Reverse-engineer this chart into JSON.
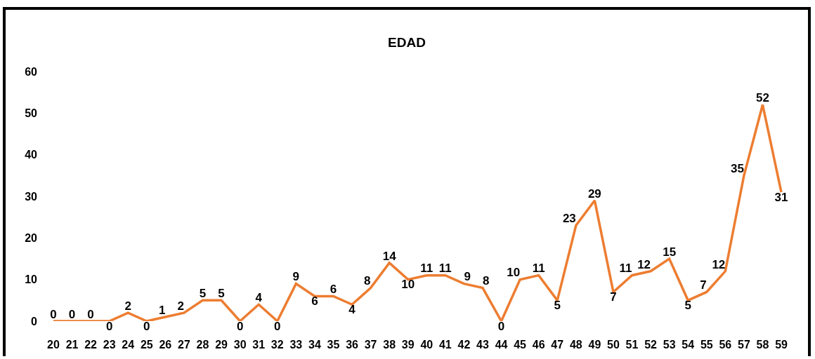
{
  "chart_data": {
    "type": "line",
    "title": "EDAD",
    "categories": [
      "20",
      "21",
      "22",
      "23",
      "24",
      "25",
      "26",
      "27",
      "28",
      "29",
      "30",
      "31",
      "32",
      "33",
      "34",
      "35",
      "36",
      "37",
      "38",
      "39",
      "40",
      "41",
      "42",
      "43",
      "44",
      "45",
      "46",
      "47",
      "48",
      "49",
      "50",
      "51",
      "52",
      "53",
      "54",
      "55",
      "56",
      "57",
      "58",
      "59"
    ],
    "series": [
      {
        "color": "#ed7d31",
        "values": [
          0,
          0,
          0,
          0,
          2,
          0,
          1,
          2,
          5,
          5,
          0,
          4,
          0,
          9,
          6,
          6,
          4,
          8,
          14,
          10,
          11,
          11,
          9,
          8,
          0,
          10,
          11,
          5,
          23,
          29,
          7,
          11,
          12,
          15,
          5,
          7,
          12,
          35,
          52,
          31
        ]
      }
    ],
    "ylim": [
      0,
      60
    ],
    "yticks": [
      0,
      10,
      20,
      30,
      40,
      50,
      60
    ],
    "grid": false,
    "marker": "none",
    "line_style": "solid",
    "data_labels": true
  }
}
